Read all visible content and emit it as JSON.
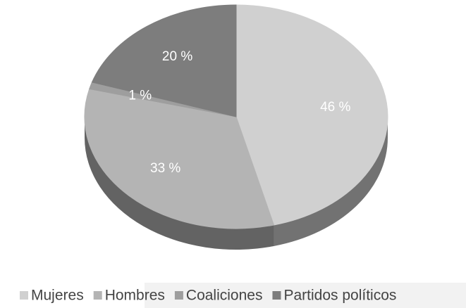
{
  "chart_data": {
    "type": "pie3d",
    "categories": [
      "Mujeres",
      "Hombres",
      "Coaliciones",
      "Partidos políticos"
    ],
    "values": [
      46,
      33,
      1,
      20
    ],
    "value_labels": [
      "46 %",
      "33 %",
      "1 %",
      "20 %"
    ],
    "colors": [
      "#d0d0d0",
      "#b4b4b4",
      "#9e9e9e",
      "#7d7d7d"
    ],
    "legend": "bottom"
  }
}
